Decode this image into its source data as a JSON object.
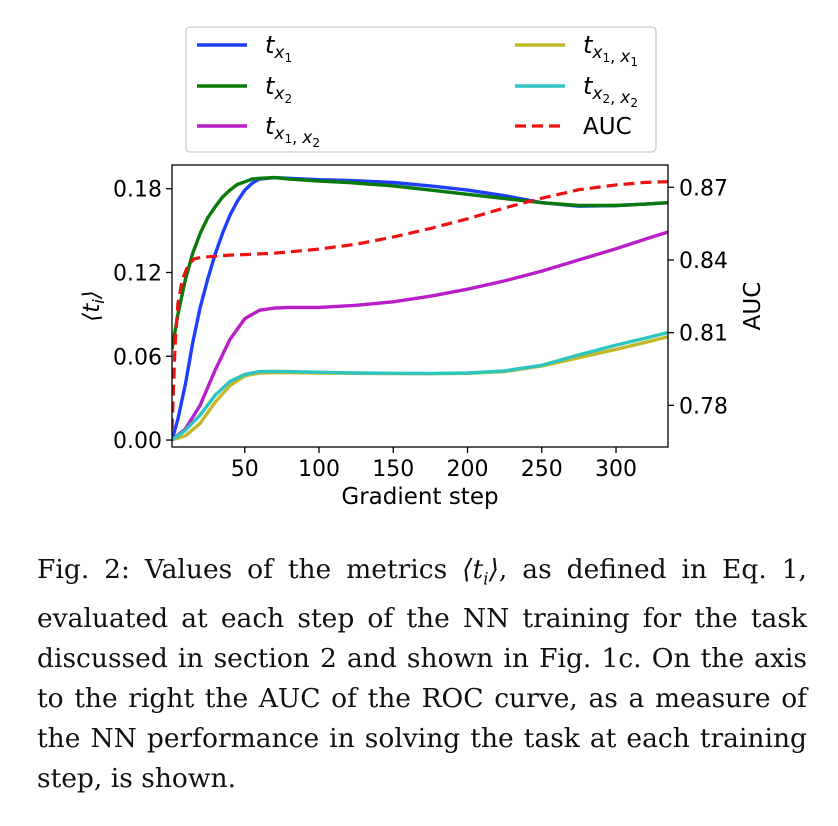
{
  "chart_data": {
    "type": "line",
    "xlabel": "Gradient step",
    "ylabel": "⟨t_i⟩",
    "ylabel_right": "AUC",
    "xlim": [
      1,
      335
    ],
    "ylim": [
      -0.005,
      0.197
    ],
    "ylim_right": [
      0.7628,
      0.8792
    ],
    "xticks": [
      50,
      100,
      150,
      200,
      250,
      300
    ],
    "yticks": [
      "0.00",
      "0.06",
      "0.12",
      "0.18"
    ],
    "yticks_right": [
      "0.78",
      "0.81",
      "0.84",
      "0.87"
    ],
    "grid": false,
    "legend_position": "above",
    "series": [
      {
        "name": "t_{x1}",
        "color": "#1f3fff",
        "style": "solid",
        "axis": "left",
        "x": [
          1,
          5,
          10,
          15,
          20,
          25,
          30,
          35,
          40,
          45,
          50,
          55,
          60,
          70,
          80,
          100,
          120,
          150,
          175,
          200,
          225,
          250,
          275,
          300,
          320,
          335
        ],
        "y": [
          0.0,
          0.015,
          0.04,
          0.07,
          0.095,
          0.115,
          0.133,
          0.148,
          0.161,
          0.171,
          0.179,
          0.184,
          0.187,
          0.188,
          0.1875,
          0.1865,
          0.186,
          0.1845,
          0.182,
          0.179,
          0.175,
          0.17,
          0.1675,
          0.168,
          0.169,
          0.17
        ]
      },
      {
        "name": "t_{x2}",
        "color": "#0a7a0a",
        "style": "solid",
        "axis": "left",
        "x": [
          1,
          5,
          10,
          15,
          20,
          25,
          30,
          35,
          40,
          45,
          50,
          55,
          60,
          70,
          80,
          100,
          120,
          150,
          175,
          200,
          225,
          250,
          275,
          300,
          320,
          335
        ],
        "y": [
          0.065,
          0.09,
          0.115,
          0.134,
          0.148,
          0.159,
          0.167,
          0.174,
          0.179,
          0.183,
          0.185,
          0.187,
          0.1875,
          0.188,
          0.187,
          0.1855,
          0.1845,
          0.182,
          0.179,
          0.176,
          0.173,
          0.17,
          0.168,
          0.168,
          0.169,
          0.17
        ]
      },
      {
        "name": "t_{x1, x2}",
        "color": "#b81fc8",
        "style": "solid",
        "axis": "left",
        "x": [
          1,
          10,
          20,
          30,
          40,
          50,
          60,
          70,
          80,
          100,
          125,
          150,
          175,
          200,
          225,
          250,
          275,
          300,
          320,
          335
        ],
        "y": [
          0.0,
          0.008,
          0.025,
          0.05,
          0.072,
          0.087,
          0.093,
          0.0945,
          0.095,
          0.095,
          0.0965,
          0.099,
          0.103,
          0.108,
          0.114,
          0.121,
          0.129,
          0.137,
          0.144,
          0.149
        ]
      },
      {
        "name": "t_{x1, x1}",
        "color": "#c2b92a",
        "style": "solid",
        "axis": "left",
        "x": [
          1,
          10,
          20,
          30,
          40,
          50,
          60,
          70,
          80,
          100,
          125,
          150,
          175,
          200,
          225,
          250,
          275,
          300,
          320,
          335
        ],
        "y": [
          0.0,
          0.003,
          0.012,
          0.027,
          0.039,
          0.046,
          0.048,
          0.0482,
          0.0482,
          0.048,
          0.0478,
          0.0476,
          0.0475,
          0.0478,
          0.049,
          0.053,
          0.059,
          0.065,
          0.07,
          0.074
        ]
      },
      {
        "name": "t_{x2, x2}",
        "color": "#2ec4c0",
        "style": "solid",
        "axis": "left",
        "x": [
          1,
          10,
          20,
          30,
          40,
          50,
          60,
          70,
          80,
          100,
          125,
          150,
          175,
          200,
          225,
          250,
          275,
          300,
          320,
          335
        ],
        "y": [
          0.0,
          0.007,
          0.018,
          0.032,
          0.042,
          0.047,
          0.049,
          0.0492,
          0.049,
          0.0485,
          0.048,
          0.0478,
          0.0477,
          0.048,
          0.0495,
          0.0535,
          0.061,
          0.068,
          0.073,
          0.077
        ]
      },
      {
        "name": "AUC",
        "color": "#ee1111",
        "style": "dashed",
        "axis": "right",
        "x": [
          1,
          3,
          5,
          8,
          12,
          16,
          20,
          25,
          30,
          40,
          50,
          70,
          100,
          125,
          150,
          175,
          200,
          225,
          250,
          275,
          300,
          320,
          335
        ],
        "y": [
          0.77,
          0.804,
          0.822,
          0.832,
          0.838,
          0.8405,
          0.841,
          0.8413,
          0.8415,
          0.842,
          0.8422,
          0.8428,
          0.8445,
          0.8465,
          0.8495,
          0.853,
          0.857,
          0.8615,
          0.8655,
          0.869,
          0.871,
          0.872,
          0.8723
        ]
      }
    ]
  },
  "caption": {
    "prefix": "Fig. 2: Values of the metrics ",
    "metric_symbol": "⟨t",
    "metric_sub": "i",
    "metric_close": "⟩",
    "suffix": ", as defined in Eq. 1, evaluated at each step of the NN training for the task discussed in section 2 and shown in Fig. 1c. On the axis to the right the AUC of the ROC curve, as a measure of the NN performance in solving the task at each training step, is shown."
  }
}
